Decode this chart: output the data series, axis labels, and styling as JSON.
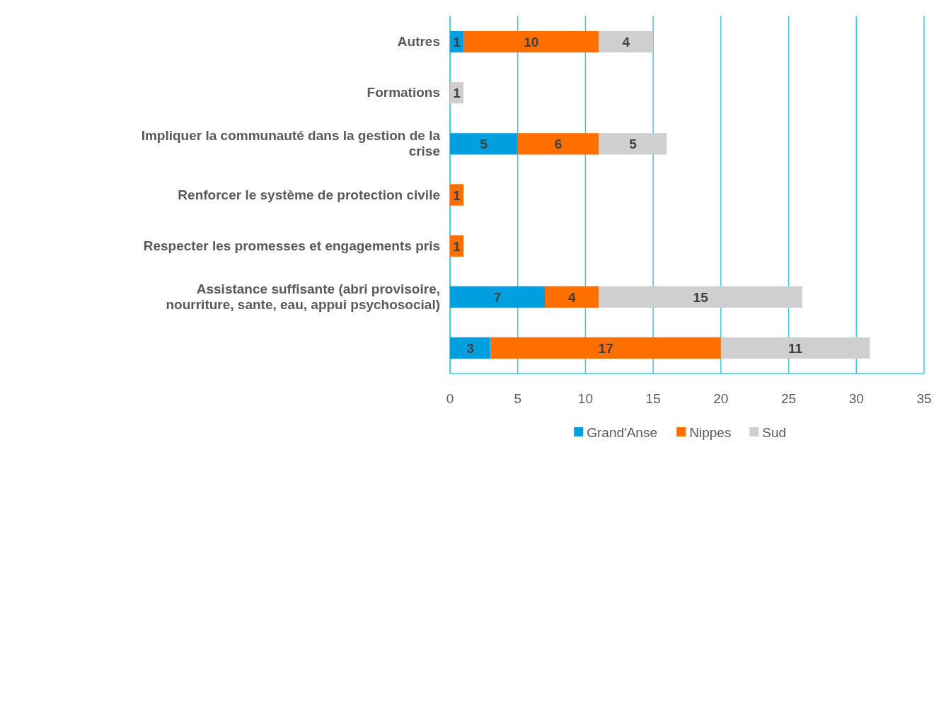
{
  "chart_data": {
    "type": "bar",
    "orientation": "horizontal",
    "stacked": true,
    "categories": [
      "Autres",
      "Formations",
      "Impliquer la communauté dans la gestion de la crise",
      "Renforcer le système de protection civile",
      "Respecter les promesses et engagements pris",
      "Assistance suffisante (abri provisoire, nourriture, sante, eau, appui psychosocial)",
      null
    ],
    "series": [
      {
        "name": "Grand'Anse",
        "color": "#009fdf",
        "values": [
          1,
          null,
          5,
          null,
          null,
          7,
          3
        ]
      },
      {
        "name": "Nippes",
        "color": "#ff6f00",
        "values": [
          10,
          null,
          6,
          1,
          1,
          4,
          17
        ]
      },
      {
        "name": "Sud",
        "color": "#cfcfcf",
        "values": [
          4,
          1,
          5,
          null,
          null,
          15,
          11
        ]
      }
    ],
    "xlim": [
      0,
      35
    ],
    "xticks": [
      0,
      5,
      10,
      15,
      20,
      25,
      30,
      35
    ],
    "grid": "x",
    "legend": "bottom",
    "data_labels": true
  }
}
